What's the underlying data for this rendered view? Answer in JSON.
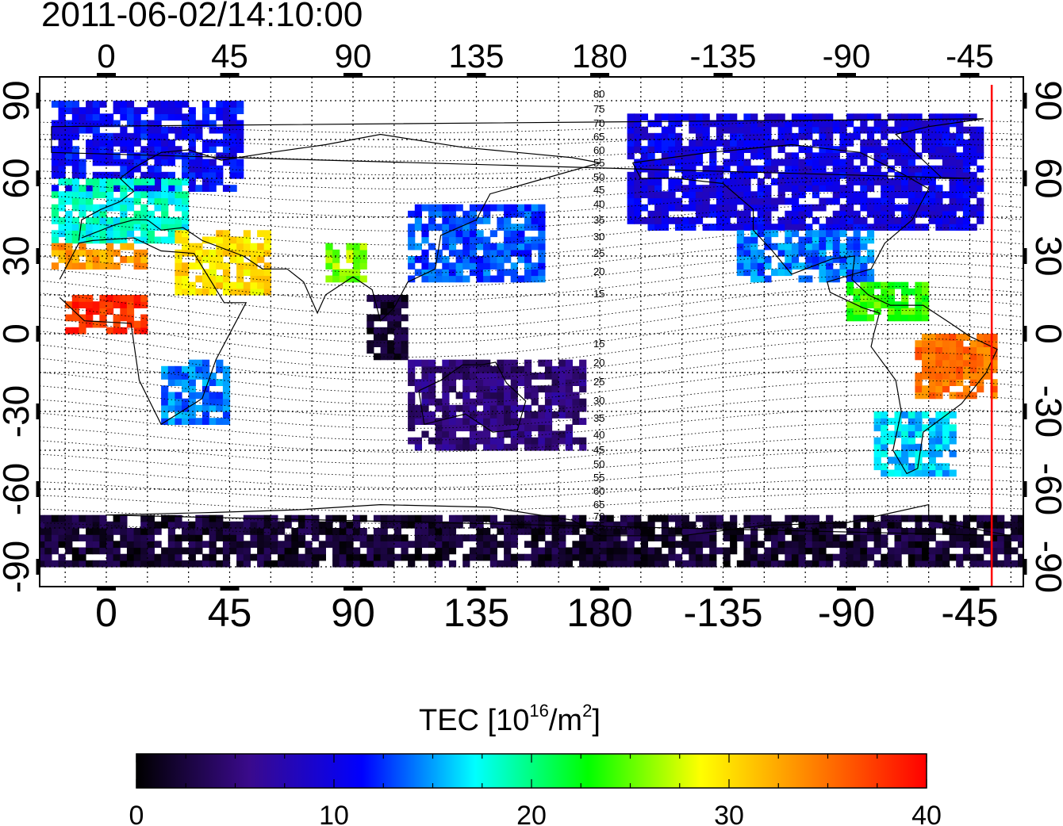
{
  "title": "2011-06-02/14:10:00",
  "colorbar": {
    "label_prefix": "TEC  [10",
    "label_sup1": "16",
    "label_mid": "/m",
    "label_sup2": "2",
    "label_suffix": "]",
    "ticks": [
      "0",
      "10",
      "20",
      "30",
      "40"
    ],
    "min": 0,
    "max": 40,
    "colors": [
      "#000000",
      "#3a0a8c",
      "#0000ff",
      "#00ffff",
      "#00ff00",
      "#ffff00",
      "#ff8000",
      "#ff0000"
    ]
  },
  "map": {
    "lon_tick_labels": [
      "0",
      "45",
      "90",
      "135",
      "180",
      "-135",
      "-90",
      "-45"
    ],
    "lat_tick_labels": [
      "90",
      "60",
      "30",
      "0",
      "-30",
      "-60",
      "-90"
    ],
    "lon_range": [
      -25,
      335
    ],
    "lat_range": [
      -95,
      95
    ],
    "terminator_longitude": -37,
    "terminator_color": "#ff0000"
  },
  "magnetic_latitude_labels": {
    "north": [
      "80",
      "75",
      "70",
      "65",
      "60",
      "55",
      "50",
      "45",
      "40",
      "35",
      "30",
      "25",
      "20",
      "15"
    ],
    "south": [
      "15",
      "20",
      "25",
      "30",
      "35",
      "40",
      "45",
      "50",
      "55",
      "60",
      "65",
      "70",
      "75"
    ]
  },
  "chart_data": {
    "type": "heatmap",
    "title": "2011-06-02/14:10:00",
    "colorbar_label": "TEC  [10^16/m^2]",
    "value_range": [
      0,
      40
    ],
    "regions": [
      {
        "lon": [
          -20,
          50
        ],
        "lat": [
          55,
          88
        ],
        "tec": 11
      },
      {
        "lon": [
          -20,
          30
        ],
        "lat": [
          35,
          60
        ],
        "tec": 18
      },
      {
        "lon": [
          -20,
          15
        ],
        "lat": [
          25,
          35
        ],
        "tec": 33
      },
      {
        "lon": [
          -15,
          15
        ],
        "lat": [
          0,
          15
        ],
        "tec": 38
      },
      {
        "lon": [
          25,
          60
        ],
        "lat": [
          15,
          40
        ],
        "tec": 30
      },
      {
        "lon": [
          20,
          45
        ],
        "lat": [
          -35,
          -10
        ],
        "tec": 14
      },
      {
        "lon": [
          80,
          95
        ],
        "lat": [
          20,
          35
        ],
        "tec": 26
      },
      {
        "lon": [
          95,
          110
        ],
        "lat": [
          -10,
          15
        ],
        "tec": 2
      },
      {
        "lon": [
          110,
          160
        ],
        "lat": [
          20,
          50
        ],
        "tec": 13
      },
      {
        "lon": [
          110,
          175
        ],
        "lat": [
          -45,
          -10
        ],
        "tec": 5
      },
      {
        "lon": [
          -170,
          -40
        ],
        "lat": [
          40,
          85
        ],
        "tec": 10
      },
      {
        "lon": [
          -130,
          -80
        ],
        "lat": [
          20,
          40
        ],
        "tec": 14
      },
      {
        "lon": [
          -90,
          -60
        ],
        "lat": [
          5,
          20
        ],
        "tec": 24
      },
      {
        "lon": [
          -65,
          -35
        ],
        "lat": [
          -25,
          0
        ],
        "tec": 35
      },
      {
        "lon": [
          -80,
          -50
        ],
        "lat": [
          -55,
          -30
        ],
        "tec": 16
      },
      {
        "lon": [
          -180,
          180
        ],
        "lat": [
          -90,
          -72
        ],
        "tec": 2
      }
    ]
  }
}
